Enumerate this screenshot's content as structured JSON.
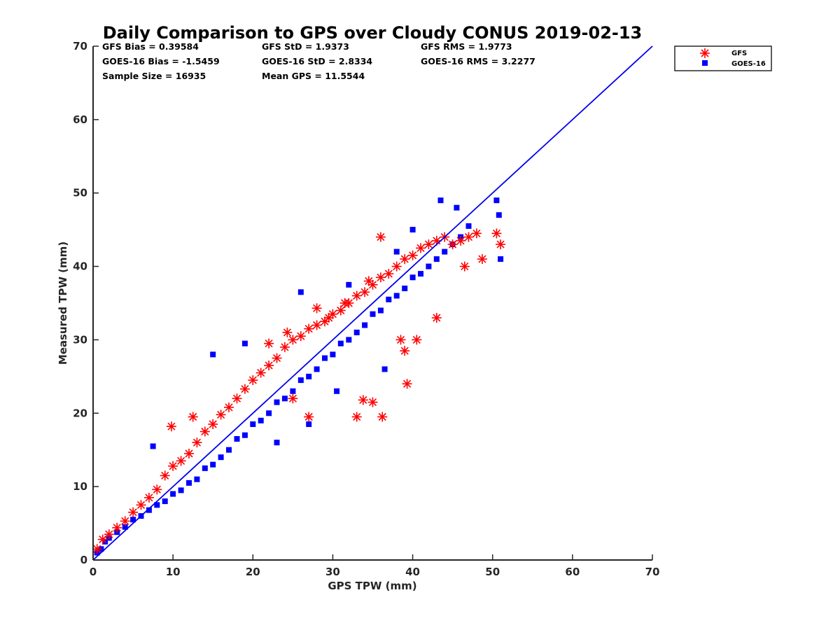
{
  "chart_data": {
    "type": "scatter",
    "title": "Daily Comparison to GPS over Cloudy CONUS 2019-02-13",
    "xlabel": "GPS TPW (mm)",
    "ylabel": "Measured TPW (mm)",
    "xlim": [
      0,
      70
    ],
    "ylim": [
      0,
      70
    ],
    "xticks": [
      "0",
      "10",
      "20",
      "30",
      "40",
      "50",
      "60",
      "70"
    ],
    "yticks": [
      "0",
      "10",
      "20",
      "30",
      "40",
      "50",
      "60",
      "70"
    ],
    "grid": false,
    "legend_position": "outside top-right",
    "stats": [
      [
        "GFS Bias = 0.39584",
        "GFS StD = 1.9373",
        "GFS RMS = 1.9773"
      ],
      [
        "GOES-16 Bias = -1.5459",
        "GOES-16 StD = 2.8334",
        "GOES-16 RMS = 3.2277"
      ],
      [
        "Sample Size = 16935",
        "Mean GPS = 11.5544"
      ]
    ],
    "reference_line": {
      "name": "1:1 line",
      "x": [
        0,
        70
      ],
      "y": [
        0,
        70
      ],
      "color": "#0000ee"
    },
    "series": [
      {
        "name": "GFS",
        "marker": "asterisk",
        "color": "#ff0000",
        "x": [
          0.5,
          1.2,
          2.0,
          3.0,
          4.0,
          5.0,
          6.0,
          7.0,
          8.0,
          9.0,
          10.0,
          11.0,
          12.0,
          13.0,
          14.0,
          15.0,
          16.0,
          17.0,
          18.0,
          19.0,
          20.0,
          21.0,
          22.0,
          23.0,
          24.0,
          25.0,
          26.0,
          27.0,
          28.0,
          29.0,
          30.0,
          31.0,
          32.0,
          33.0,
          34.0,
          35.0,
          36.0,
          37.0,
          38.0,
          39.0,
          40.0,
          41.0,
          42.0,
          43.0,
          44.0,
          45.0,
          46.0,
          47.0,
          48.0,
          50.5,
          51.0,
          9.8,
          12.5,
          22.0,
          24.3,
          28.0,
          29.5,
          31.5,
          34.5,
          35.0,
          36.2,
          39.3,
          39.0,
          38.5,
          43.0,
          46.5,
          48.7,
          33.0,
          33.8,
          36.0,
          40.5,
          25.0,
          27.0
        ],
        "y": [
          1.5,
          2.8,
          3.5,
          4.4,
          5.3,
          6.5,
          7.5,
          8.5,
          9.6,
          11.5,
          12.8,
          13.5,
          14.5,
          16.0,
          17.5,
          18.5,
          19.8,
          20.8,
          22.0,
          23.3,
          24.5,
          25.5,
          26.5,
          27.5,
          29.0,
          30.0,
          30.5,
          31.5,
          32.0,
          32.5,
          33.5,
          34.0,
          35.0,
          36.0,
          36.5,
          37.5,
          38.5,
          39.0,
          40.0,
          41.0,
          41.5,
          42.5,
          43.0,
          43.5,
          44.0,
          43.0,
          43.5,
          44.0,
          44.5,
          44.5,
          43.0,
          18.2,
          19.5,
          29.5,
          31.0,
          34.3,
          33.0,
          35.0,
          38.0,
          21.5,
          19.5,
          24.0,
          28.5,
          30.0,
          33.0,
          40.0,
          41.0,
          19.5,
          21.8,
          44.0,
          30.0,
          22.0,
          19.5
        ]
      },
      {
        "name": "GOES-16",
        "marker": "square",
        "color": "#0000ff",
        "x": [
          0.5,
          1.0,
          1.5,
          2.0,
          3.0,
          4.0,
          5.0,
          6.0,
          7.0,
          8.0,
          9.0,
          10.0,
          11.0,
          12.0,
          13.0,
          14.0,
          15.0,
          16.0,
          17.0,
          18.0,
          19.0,
          20.0,
          21.0,
          22.0,
          23.0,
          24.0,
          25.0,
          26.0,
          27.0,
          28.0,
          29.0,
          30.0,
          31.0,
          32.0,
          33.0,
          34.0,
          35.0,
          36.0,
          37.0,
          38.0,
          39.0,
          40.0,
          41.0,
          42.0,
          43.0,
          44.0,
          45.0,
          46.0,
          47.0,
          50.5,
          50.8,
          51.0,
          7.5,
          15.0,
          19.0,
          26.0,
          30.5,
          36.5,
          40.0,
          43.5,
          45.5,
          32.0,
          38.0,
          27.0,
          23.0
        ],
        "y": [
          1.0,
          1.5,
          2.5,
          3.0,
          3.8,
          4.5,
          5.5,
          6.0,
          6.8,
          7.5,
          8.0,
          9.0,
          9.5,
          10.5,
          11.0,
          12.5,
          13.0,
          14.0,
          15.0,
          16.5,
          17.0,
          18.5,
          19.0,
          20.0,
          21.5,
          22.0,
          23.0,
          24.5,
          25.0,
          26.0,
          27.5,
          28.0,
          29.5,
          30.0,
          31.0,
          32.0,
          33.5,
          34.0,
          35.5,
          36.0,
          37.0,
          38.5,
          39.0,
          40.0,
          41.0,
          42.0,
          43.0,
          44.0,
          45.5,
          49.0,
          47.0,
          41.0,
          15.5,
          28.0,
          29.5,
          36.5,
          23.0,
          26.0,
          45.0,
          49.0,
          48.0,
          37.5,
          42.0,
          18.5,
          16.0
        ]
      }
    ]
  }
}
